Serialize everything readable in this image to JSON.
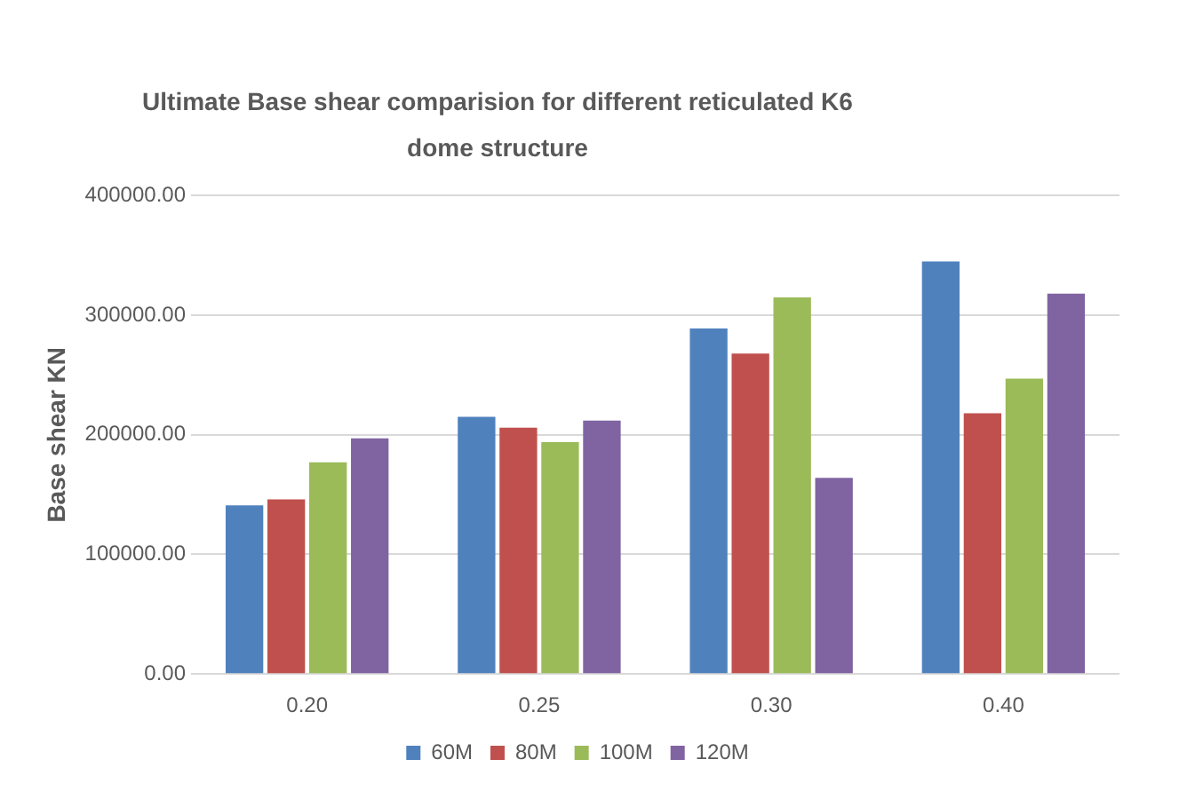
{
  "chart_data": {
    "type": "bar",
    "title": "Ultimate Base shear comparision for different reticulated K6 dome structure",
    "ylabel": "Base shear KN",
    "categories": [
      "0.20",
      "0.25",
      "0.30",
      "0.40"
    ],
    "series": [
      {
        "name": "60M",
        "color": "#4f81bd",
        "values": [
          141000,
          215000,
          289000,
          345000
        ]
      },
      {
        "name": "80M",
        "color": "#c0504d",
        "values": [
          146000,
          206000,
          268000,
          218000
        ]
      },
      {
        "name": "100M",
        "color": "#9bbb59",
        "values": [
          177000,
          194000,
          315000,
          247000
        ]
      },
      {
        "name": "120M",
        "color": "#8064a2",
        "values": [
          197000,
          212000,
          164000,
          318000
        ]
      }
    ],
    "ylim": [
      0,
      400000
    ],
    "yticks": [
      {
        "value": 0,
        "label": "0.00"
      },
      {
        "value": 100000,
        "label": "100000.00"
      },
      {
        "value": 200000,
        "label": "200000.00"
      },
      {
        "value": 300000,
        "label": "300000.00"
      },
      {
        "value": 400000,
        "label": "400000.00"
      }
    ],
    "grid": "y",
    "legend": "bottom"
  }
}
